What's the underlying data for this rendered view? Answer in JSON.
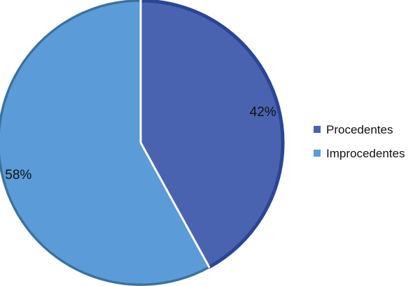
{
  "chart_data": {
    "type": "pie",
    "title": "",
    "categories": [
      "Procedentes",
      "Improcedentes"
    ],
    "values": [
      42,
      58
    ],
    "labels": [
      "42%",
      "58%"
    ],
    "colors": [
      "#4a63b0",
      "#5a9bd8"
    ],
    "edge_colors": [
      "#2b4596",
      "#3f6f95"
    ],
    "start_angle_deg": 0,
    "direction": "clockwise",
    "legend_position": "right"
  }
}
